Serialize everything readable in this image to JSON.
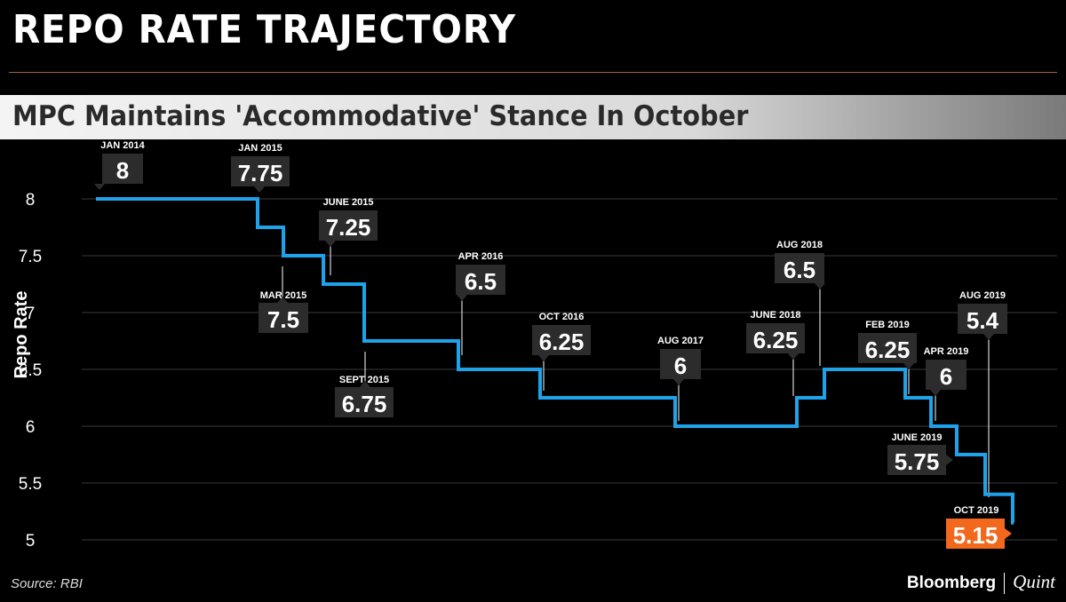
{
  "title": "REPO RATE TRAJECTORY",
  "subtitle": "MPC Maintains 'Accommodative' Stance In October",
  "source": "Source: RBI",
  "brand": {
    "name": "Bloomberg",
    "partner": "Quint"
  },
  "colors": {
    "line": "#1ea3ea",
    "label_box": "#2c2c2c",
    "highlight": "#f2681c",
    "grid": "#3a3a3a"
  },
  "chart_data": {
    "type": "line",
    "step": true,
    "ylabel": "Repo Rate",
    "xlabel": "",
    "ylim": [
      5,
      8
    ],
    "yticks": [
      5,
      5.5,
      6,
      6.5,
      7,
      7.5,
      8
    ],
    "grid": true,
    "series": [
      {
        "points": [
          {
            "label": "JAN 2014",
            "value": 8
          },
          {
            "label": "JAN 2015",
            "value": 7.75
          },
          {
            "label": "MAR 2015",
            "value": 7.5
          },
          {
            "label": "JUNE 2015",
            "value": 7.25
          },
          {
            "label": "SEPT 2015",
            "value": 6.75
          },
          {
            "label": "APR 2016",
            "value": 6.5
          },
          {
            "label": "OCT 2016",
            "value": 6.25
          },
          {
            "label": "AUG 2017",
            "value": 6
          },
          {
            "label": "JUNE 2018",
            "value": 6.25
          },
          {
            "label": "AUG 2018",
            "value": 6.5
          },
          {
            "label": "FEB 2019",
            "value": 6.25
          },
          {
            "label": "APR 2019",
            "value": 6
          },
          {
            "label": "JUNE 2019",
            "value": 5.75
          },
          {
            "label": "AUG 2019",
            "value": 5.4
          },
          {
            "label": "OCT 2019",
            "value": 5.15
          }
        ]
      }
    ]
  }
}
